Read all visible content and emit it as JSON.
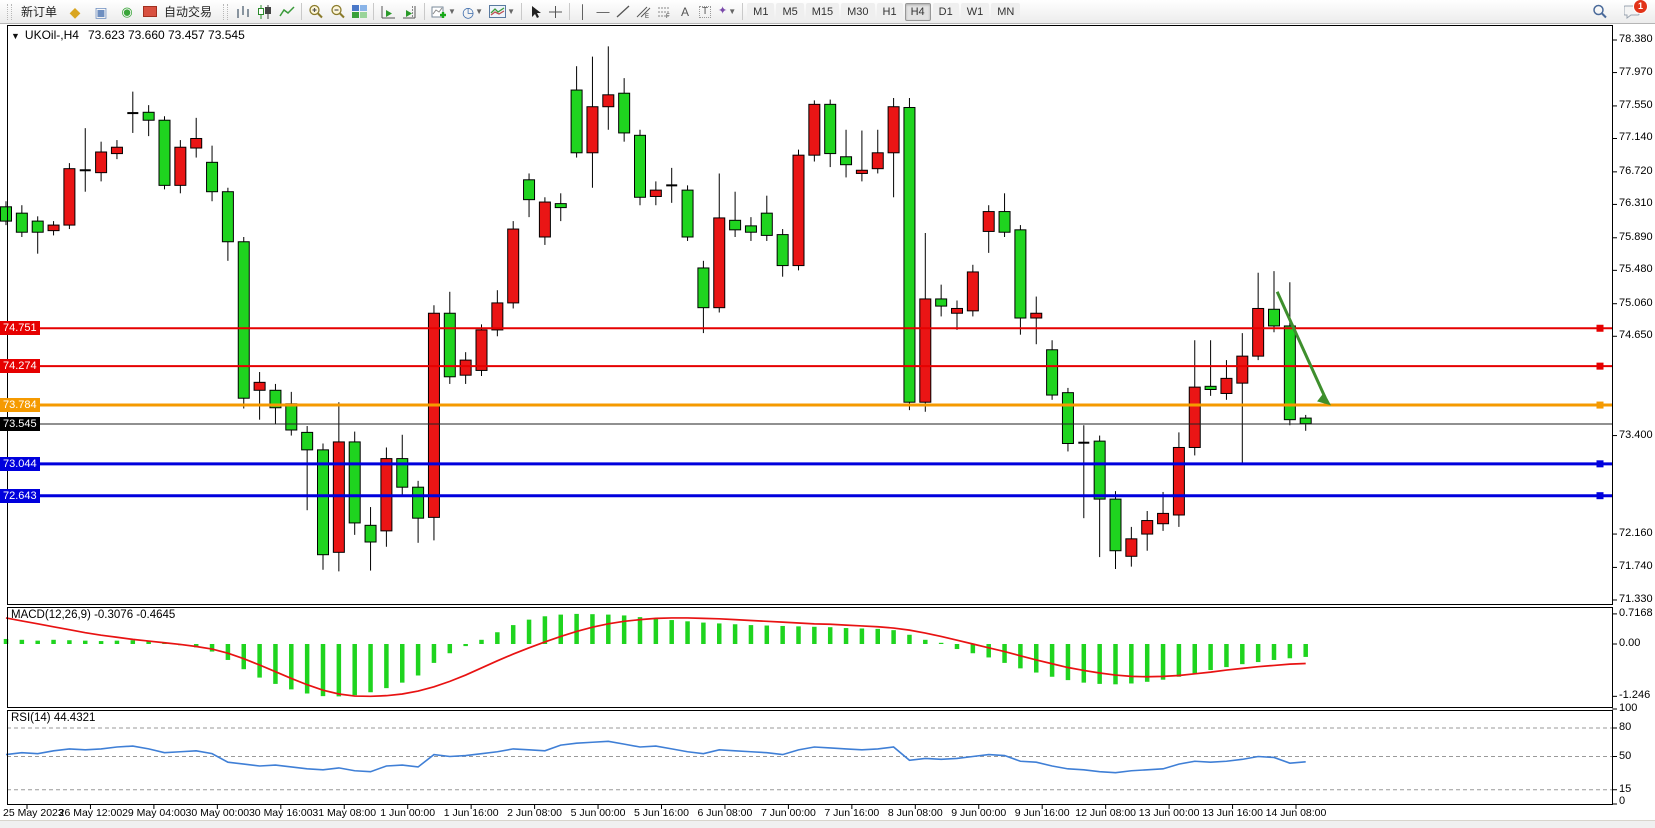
{
  "toolbar": {
    "new_order_label": "新订单",
    "auto_trading_label": "自动交易",
    "timeframes": [
      "M1",
      "M5",
      "M15",
      "M30",
      "H1",
      "H4",
      "D1",
      "W1",
      "MN"
    ],
    "active_timeframe": "H4",
    "notification_count": "1"
  },
  "chart": {
    "title_symbol": "UKOil-,H4",
    "title_ohlc": "73.623 73.660 73.457 73.545",
    "macd_label": "MACD(12,26,9) -0.3076 -0.4645",
    "rsi_label": "RSI(14) 44.4321"
  },
  "chart_data": {
    "type": "candlestick",
    "symbol": "UKOil-",
    "timeframe": "H4",
    "ohlc_display": "73.623 73.660 73.457 73.545",
    "price_axis": {
      "min": 71.33,
      "max": 78.38,
      "ticks": [
        78.38,
        77.97,
        77.55,
        77.14,
        76.72,
        76.31,
        75.89,
        75.48,
        75.06,
        74.65,
        73.4,
        72.16,
        71.74,
        71.33
      ]
    },
    "time_axis": [
      "25 May 2023",
      "26 May 12:00",
      "29 May 04:00",
      "30 May 00:00",
      "30 May 16:00",
      "31 May 08:00",
      "1 Jun 00:00",
      "1 Jun 16:00",
      "2 Jun 08:00",
      "5 Jun 00:00",
      "5 Jun 16:00",
      "6 Jun 08:00",
      "7 Jun 00:00",
      "7 Jun 16:00",
      "8 Jun 08:00",
      "9 Jun 00:00",
      "9 Jun 16:00",
      "12 Jun 08:00",
      "13 Jun 00:00",
      "13 Jun 16:00",
      "14 Jun 08:00"
    ],
    "h_lines": [
      {
        "price": 74.751,
        "label": "74.751",
        "color": "#e60000",
        "width": 2
      },
      {
        "price": 74.274,
        "label": "74.274",
        "color": "#e60000",
        "width": 2
      },
      {
        "price": 73.784,
        "label": "73.784",
        "color": "#f59a00",
        "width": 3
      },
      {
        "price": 73.044,
        "label": "73.044",
        "color": "#0000dd",
        "width": 3
      },
      {
        "price": 72.643,
        "label": "72.643",
        "color": "#0000dd",
        "width": 3
      }
    ],
    "current_price": {
      "price": 73.545,
      "label": "73.545",
      "color": "#000000"
    },
    "arrow_annotation": {
      "i1": 80.2,
      "p1": 75.21,
      "i2": 83.6,
      "p2": 73.78,
      "color": "#3e8f2d"
    },
    "up_color": "#ea1515",
    "down_color": "#1fd41f",
    "candles": [
      [
        "g",
        76.35,
        76.05,
        76.28,
        76.1
      ],
      [
        "g",
        76.3,
        75.9,
        76.2,
        75.96
      ],
      [
        "g",
        76.16,
        75.69,
        76.1,
        75.96
      ],
      [
        "r",
        76.1,
        75.92,
        76.05,
        75.98
      ],
      [
        "r",
        76.83,
        76.0,
        76.76,
        76.05
      ],
      [
        "d",
        77.27,
        76.47,
        76.74,
        76.74
      ],
      [
        "r",
        77.1,
        76.6,
        76.97,
        76.71
      ],
      [
        "r",
        77.12,
        76.88,
        77.03,
        76.95
      ],
      [
        "d",
        77.73,
        77.21,
        77.46,
        77.46
      ],
      [
        "g",
        77.56,
        77.17,
        77.47,
        77.37
      ],
      [
        "g",
        77.42,
        76.5,
        77.37,
        76.55
      ],
      [
        "r",
        77.12,
        76.45,
        77.03,
        76.55
      ],
      [
        "r",
        77.4,
        76.9,
        77.14,
        77.02
      ],
      [
        "g",
        77.05,
        76.35,
        76.84,
        76.47
      ],
      [
        "g",
        76.52,
        75.6,
        76.47,
        75.84
      ],
      [
        "g",
        75.9,
        73.74,
        75.84,
        73.87
      ],
      [
        "r",
        74.2,
        73.6,
        74.07,
        73.97
      ],
      [
        "g",
        74.05,
        73.55,
        73.97,
        73.75
      ],
      [
        "g",
        73.95,
        73.4,
        73.8,
        73.47
      ],
      [
        "g",
        73.52,
        72.46,
        73.44,
        73.22
      ],
      [
        "g",
        73.3,
        71.71,
        73.22,
        71.9
      ],
      [
        "r",
        73.82,
        71.69,
        73.32,
        71.93
      ],
      [
        "g",
        73.45,
        72.15,
        73.32,
        72.3
      ],
      [
        "g",
        72.5,
        71.7,
        72.27,
        72.06
      ],
      [
        "r",
        73.25,
        72.0,
        73.11,
        72.2
      ],
      [
        "g",
        73.41,
        72.65,
        73.11,
        72.75
      ],
      [
        "g",
        72.83,
        72.05,
        72.75,
        72.36
      ],
      [
        "r",
        75.04,
        72.08,
        74.94,
        72.37
      ],
      [
        "g",
        75.21,
        74.05,
        74.94,
        74.14
      ],
      [
        "r",
        74.45,
        74.05,
        74.35,
        74.16
      ],
      [
        "r",
        74.8,
        74.15,
        74.73,
        74.22
      ],
      [
        "r",
        75.23,
        74.65,
        75.07,
        74.73
      ],
      [
        "r",
        76.1,
        75.0,
        76.0,
        75.07
      ],
      [
        "g",
        76.7,
        76.15,
        76.62,
        76.37
      ],
      [
        "r",
        76.4,
        75.8,
        76.34,
        75.9
      ],
      [
        "g",
        76.45,
        76.1,
        76.32,
        76.27
      ],
      [
        "g",
        78.05,
        76.9,
        77.75,
        76.96
      ],
      [
        "r",
        78.17,
        76.52,
        77.54,
        76.96
      ],
      [
        "r",
        78.3,
        77.25,
        77.69,
        77.54
      ],
      [
        "g",
        77.9,
        77.1,
        77.71,
        77.21
      ],
      [
        "g",
        77.25,
        76.3,
        77.18,
        76.4
      ],
      [
        "r",
        76.6,
        76.3,
        76.49,
        76.41
      ],
      [
        "d",
        76.77,
        76.33,
        76.55,
        76.55
      ],
      [
        "g",
        76.55,
        75.85,
        76.49,
        75.9
      ],
      [
        "g",
        75.6,
        74.69,
        75.51,
        75.01
      ],
      [
        "r",
        76.7,
        74.95,
        76.14,
        75.01
      ],
      [
        "g",
        76.47,
        75.9,
        76.11,
        75.99
      ],
      [
        "g",
        76.15,
        75.85,
        76.04,
        75.96
      ],
      [
        "g",
        76.42,
        75.85,
        76.2,
        75.92
      ],
      [
        "g",
        76.0,
        75.4,
        75.93,
        75.54
      ],
      [
        "r",
        77.0,
        75.48,
        76.93,
        75.54
      ],
      [
        "r",
        77.62,
        76.85,
        77.57,
        76.93
      ],
      [
        "g",
        77.63,
        76.78,
        77.57,
        76.95
      ],
      [
        "g",
        77.25,
        76.65,
        76.91,
        76.81
      ],
      [
        "r",
        77.24,
        76.6,
        76.74,
        76.7
      ],
      [
        "r",
        77.25,
        76.7,
        76.96,
        76.76
      ],
      [
        "r",
        77.65,
        76.4,
        77.54,
        76.96
      ],
      [
        "g",
        77.65,
        73.72,
        77.53,
        73.82
      ],
      [
        "r",
        75.95,
        73.7,
        75.12,
        73.82
      ],
      [
        "g",
        75.3,
        74.9,
        75.12,
        75.03
      ],
      [
        "r",
        75.1,
        74.73,
        75.0,
        74.94
      ],
      [
        "r",
        75.55,
        74.9,
        75.46,
        74.97
      ],
      [
        "r",
        76.3,
        75.7,
        76.22,
        75.97
      ],
      [
        "g",
        76.45,
        75.9,
        76.22,
        75.96
      ],
      [
        "g",
        76.05,
        74.67,
        75.99,
        74.88
      ],
      [
        "r",
        75.15,
        74.55,
        74.94,
        74.88
      ],
      [
        "g",
        74.6,
        73.85,
        74.48,
        73.91
      ],
      [
        "g",
        74.0,
        73.2,
        73.94,
        73.3
      ],
      [
        "d",
        73.53,
        72.36,
        73.31,
        73.31
      ],
      [
        "g",
        73.4,
        71.87,
        73.33,
        72.6
      ],
      [
        "g",
        72.7,
        71.72,
        72.6,
        71.95
      ],
      [
        "r",
        72.25,
        71.75,
        72.1,
        71.88
      ],
      [
        "r",
        72.45,
        71.95,
        72.33,
        72.16
      ],
      [
        "r",
        72.69,
        72.2,
        72.42,
        72.29
      ],
      [
        "r",
        73.44,
        72.25,
        73.25,
        72.4
      ],
      [
        "r",
        74.6,
        73.15,
        74.01,
        73.25
      ],
      [
        "g",
        74.6,
        73.9,
        74.02,
        73.98
      ],
      [
        "r",
        74.35,
        73.85,
        74.12,
        73.93
      ],
      [
        "r",
        74.69,
        73.04,
        74.4,
        74.06
      ],
      [
        "r",
        75.45,
        74.35,
        75.0,
        74.4
      ],
      [
        "g",
        75.47,
        74.7,
        74.99,
        74.78
      ],
      [
        "g",
        75.33,
        73.53,
        74.78,
        73.6
      ],
      [
        "g",
        73.66,
        73.46,
        73.62,
        73.55
      ]
    ],
    "macd": {
      "params": "12,26,9",
      "values_display": "-0.3076 -0.4645",
      "axis_ticks": [
        {
          "v": 0.7168,
          "label": "0.7168"
        },
        {
          "v": 0,
          "label": "0.00"
        },
        {
          "v": -1.246,
          "label": "-1.246"
        }
      ],
      "histogram_color": "#1fd41f",
      "signal_color": "#e81212",
      "histogram": [
        0.12,
        0.1,
        0.08,
        0.1,
        0.09,
        0.08,
        0.07,
        0.08,
        0.09,
        0.06,
        0.02,
        -0.03,
        -0.08,
        -0.18,
        -0.38,
        -0.6,
        -0.8,
        -0.95,
        -1.08,
        -1.18,
        -1.24,
        -1.246,
        -1.22,
        -1.15,
        -1.05,
        -0.92,
        -0.75,
        -0.45,
        -0.22,
        -0.05,
        0.1,
        0.28,
        0.45,
        0.58,
        0.66,
        0.7,
        0.7168,
        0.71,
        0.7,
        0.68,
        0.64,
        0.6,
        0.57,
        0.54,
        0.51,
        0.49,
        0.47,
        0.45,
        0.44,
        0.43,
        0.42,
        0.41,
        0.4,
        0.38,
        0.37,
        0.36,
        0.33,
        0.22,
        0.1,
        -0.02,
        -0.12,
        -0.22,
        -0.32,
        -0.45,
        -0.58,
        -0.68,
        -0.78,
        -0.86,
        -0.92,
        -0.95,
        -0.96,
        -0.94,
        -0.9,
        -0.85,
        -0.78,
        -0.7,
        -0.62,
        -0.55,
        -0.48,
        -0.43,
        -0.38,
        -0.34,
        -0.3076
      ],
      "signal": [
        0.62,
        0.55,
        0.48,
        0.41,
        0.34,
        0.27,
        0.21,
        0.16,
        0.11,
        0.07,
        0.03,
        -0.01,
        -0.06,
        -0.12,
        -0.22,
        -0.35,
        -0.5,
        -0.66,
        -0.82,
        -0.97,
        -1.1,
        -1.19,
        -1.24,
        -1.246,
        -1.23,
        -1.19,
        -1.12,
        -1.02,
        -0.89,
        -0.74,
        -0.57,
        -0.4,
        -0.24,
        -0.09,
        0.05,
        0.18,
        0.3,
        0.4,
        0.48,
        0.54,
        0.58,
        0.61,
        0.62,
        0.62,
        0.61,
        0.6,
        0.58,
        0.56,
        0.54,
        0.52,
        0.5,
        0.48,
        0.47,
        0.45,
        0.43,
        0.41,
        0.38,
        0.33,
        0.26,
        0.18,
        0.09,
        0.0,
        -0.09,
        -0.18,
        -0.28,
        -0.38,
        -0.47,
        -0.56,
        -0.63,
        -0.69,
        -0.74,
        -0.77,
        -0.78,
        -0.77,
        -0.75,
        -0.71,
        -0.67,
        -0.62,
        -0.58,
        -0.54,
        -0.51,
        -0.48,
        -0.4645
      ]
    },
    "rsi": {
      "period": 14,
      "value": 44.4321,
      "line_color": "#3f7fd6",
      "levels": [
        80,
        50,
        15
      ],
      "axis_ticks": [
        {
          "v": 100,
          "label": "100"
        },
        {
          "v": 80,
          "label": "80"
        },
        {
          "v": 50,
          "label": "50"
        },
        {
          "v": 15,
          "label": "15"
        },
        {
          "v": 0,
          "label": "0"
        }
      ],
      "values": [
        52,
        54,
        53,
        56,
        58,
        57,
        58,
        60,
        61,
        58,
        54,
        55,
        56,
        53,
        44,
        42,
        40,
        41,
        39,
        37,
        36,
        38,
        35,
        34,
        40,
        41,
        39,
        52,
        50,
        51,
        53,
        55,
        58,
        57,
        56,
        62,
        64,
        65,
        66,
        63,
        60,
        61,
        58,
        55,
        53,
        57,
        56,
        55,
        54,
        52,
        57,
        60,
        59,
        58,
        57,
        58,
        60,
        46,
        48,
        47,
        48,
        50,
        52,
        51,
        45,
        44,
        40,
        37,
        36,
        34,
        33,
        35,
        36,
        37,
        42,
        45,
        44,
        45,
        47,
        50,
        49,
        43,
        44.43
      ]
    }
  }
}
